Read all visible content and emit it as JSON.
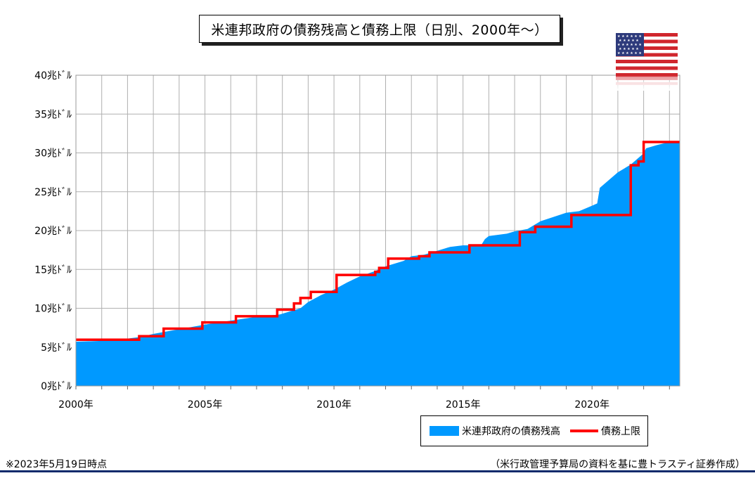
{
  "chart_data": {
    "type": "area",
    "title": "米連邦政府の債務残高と債務上限（日別、2000年～）",
    "x_ticks": [
      "2000年",
      "2005年",
      "2010年",
      "2015年",
      "2020年"
    ],
    "x_tick_values": [
      2000,
      2005,
      2010,
      2015,
      2020
    ],
    "y_ticks": [
      "0兆ﾄﾞﾙ",
      "5兆ﾄﾞﾙ",
      "10兆ﾄﾞﾙ",
      "15兆ﾄﾞﾙ",
      "20兆ﾄﾞﾙ",
      "25兆ﾄﾞﾙ",
      "30兆ﾄﾞﾙ",
      "35兆ﾄﾞﾙ",
      "40兆ﾄﾞﾙ"
    ],
    "xlim": [
      2000,
      2023.4
    ],
    "ylim": [
      0,
      40
    ],
    "grid": true,
    "legend_position": "bottom-right",
    "series": [
      {
        "name": "米連邦政府の債務残高",
        "kind": "area",
        "color": "#0099ff",
        "x": [
          2000,
          2001,
          2002,
          2002.5,
          2003,
          2003.5,
          2004,
          2005,
          2006,
          2007,
          2007.9,
          2008.7,
          2009,
          2009.5,
          2010,
          2010.5,
          2011,
          2011.6,
          2012,
          2012.7,
          2013,
          2013.5,
          2014,
          2014.5,
          2015,
          2015.7,
          2015.85,
          2016,
          2016.7,
          2017,
          2017.5,
          2018,
          2019,
          2019.5,
          2020,
          2020.2,
          2020.3,
          2021,
          2021.5,
          2021.95,
          2022.1,
          2022.5,
          2023,
          2023.4
        ],
        "y": [
          5.7,
          5.8,
          6.1,
          6.3,
          6.7,
          7.0,
          7.3,
          7.9,
          8.4,
          8.9,
          9.2,
          10.0,
          10.8,
          11.7,
          12.4,
          13.3,
          14.1,
          14.8,
          15.4,
          16.1,
          16.7,
          16.9,
          17.4,
          17.9,
          18.1,
          18.1,
          18.9,
          19.3,
          19.6,
          19.9,
          20.2,
          21.2,
          22.3,
          22.5,
          23.2,
          23.5,
          25.5,
          27.5,
          28.5,
          29.8,
          30.6,
          31.0,
          31.4,
          31.4
        ]
      },
      {
        "name": "債務上限",
        "kind": "step",
        "color": "#ff0000",
        "x": [
          2000,
          2002.45,
          2003.4,
          2004.9,
          2006.2,
          2007.8,
          2008.45,
          2008.7,
          2009.1,
          2010.1,
          2011.6,
          2011.75,
          2012.1,
          2013.3,
          2013.7,
          2014.1,
          2015.25,
          2017.2,
          2017.8,
          2019.2,
          2021.5,
          2021.8,
          2022.0,
          2023.4
        ],
        "y": [
          5.95,
          6.4,
          7.38,
          8.18,
          8.97,
          9.82,
          10.62,
          11.32,
          12.1,
          14.29,
          14.69,
          15.19,
          16.39,
          16.7,
          17.2,
          17.2,
          18.1,
          19.8,
          20.5,
          22.0,
          28.4,
          28.9,
          31.4,
          31.4
        ]
      }
    ]
  },
  "legend": {
    "debt_label": "米連邦政府の債務残高",
    "ceiling_label": "債務上限"
  },
  "footnote_left": "※2023年5月19日時点",
  "footnote_right": "（米行政管理予算局の資料を基に豊トラスティ証券作成）",
  "flag_icon": "us-flag-icon",
  "colors": {
    "area": "#0099ff",
    "line": "#ff0000",
    "rule": "#0e2a6b"
  }
}
